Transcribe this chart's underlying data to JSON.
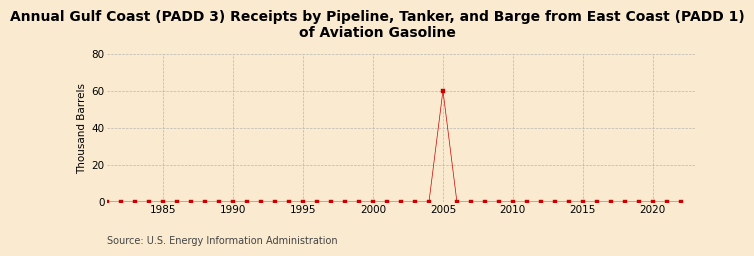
{
  "title": "Annual Gulf Coast (PADD 3) Receipts by Pipeline, Tanker, and Barge from East Coast (PADD 1)\nof Aviation Gasoline",
  "ylabel": "Thousand Barrels",
  "source": "Source: U.S. Energy Information Administration",
  "background_color": "#faebd0",
  "plot_bg_color": "#faebd0",
  "xlim": [
    1981,
    2023
  ],
  "ylim": [
    0,
    80
  ],
  "yticks": [
    0,
    20,
    40,
    60,
    80
  ],
  "xticks": [
    1985,
    1990,
    1995,
    2000,
    2005,
    2010,
    2015,
    2020
  ],
  "data_x": [
    1981,
    1982,
    1983,
    1984,
    1985,
    1986,
    1987,
    1988,
    1989,
    1990,
    1991,
    1992,
    1993,
    1994,
    1995,
    1996,
    1997,
    1998,
    1999,
    2000,
    2001,
    2002,
    2003,
    2004,
    2005,
    2006,
    2007,
    2008,
    2009,
    2010,
    2011,
    2012,
    2013,
    2014,
    2015,
    2016,
    2017,
    2018,
    2019,
    2020,
    2021,
    2022
  ],
  "data_y": [
    0,
    0,
    0,
    0,
    0,
    0,
    0,
    0,
    0,
    0,
    0,
    0,
    0,
    0,
    0,
    0,
    0,
    0,
    0,
    0,
    0,
    0,
    0,
    0,
    60,
    0,
    0,
    0,
    0,
    0,
    0,
    0,
    0,
    0,
    0,
    0,
    0,
    0,
    0,
    0,
    0,
    0
  ],
  "line_color": "#cc0000",
  "marker": "s",
  "marker_size": 2.5,
  "grid_color": "#aaaaaa",
  "grid_style": "--",
  "title_fontsize": 10,
  "label_fontsize": 7.5,
  "tick_fontsize": 7.5,
  "source_fontsize": 7
}
